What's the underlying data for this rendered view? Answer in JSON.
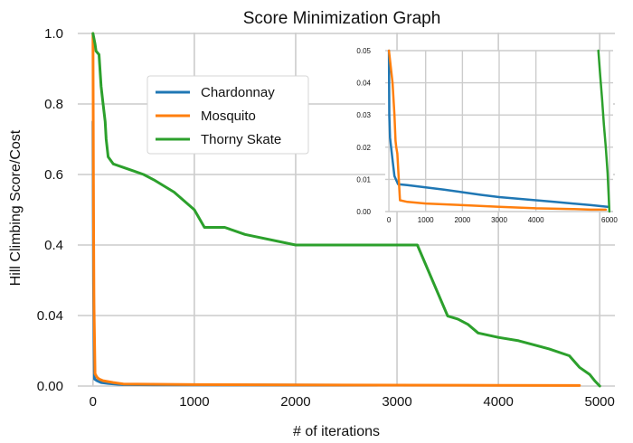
{
  "chart_data": {
    "type": "line",
    "title": "Score Minimization Graph",
    "xlabel": "# of iterations",
    "ylabel": "Hill Climbing Score/Cost",
    "x_ticks": [
      "0",
      "1000",
      "2000",
      "3000",
      "4000",
      "5000"
    ],
    "y_ticks": [
      "0.00",
      "0.04",
      "0.4",
      "0.6",
      "0.8",
      "1.0"
    ],
    "xlim": [
      -150,
      5150
    ],
    "grid": true,
    "legend": {
      "position": "upper-center",
      "entries": [
        "Chardonnay",
        "Mosquito",
        "Thorny Skate"
      ]
    },
    "colors": {
      "Chardonnay": "#1f77b4",
      "Mosquito": "#ff7f0e",
      "Thorny Skate": "#2ca02c"
    },
    "series": [
      {
        "name": "Chardonnay",
        "x": [
          0,
          5,
          15,
          40,
          80,
          150,
          250,
          300,
          600,
          1500,
          2800
        ],
        "y": [
          0.75,
          0.2,
          0.004,
          0.003,
          0.002,
          0.0015,
          0.001,
          0.0008,
          0.0007,
          0.0006,
          0.0005
        ]
      },
      {
        "name": "Mosquito",
        "x": [
          0,
          5,
          10,
          20,
          40,
          60,
          100,
          200,
          300,
          1000,
          2000,
          3000,
          4000,
          4800
        ],
        "y": [
          1.0,
          0.5,
          0.1,
          0.007,
          0.005,
          0.004,
          0.003,
          0.002,
          0.0012,
          0.0008,
          0.0006,
          0.0005,
          0.0004,
          0.0003
        ]
      },
      {
        "name": "Thorny Skate",
        "x": [
          0,
          20,
          30,
          60,
          80,
          100,
          120,
          130,
          150,
          200,
          300,
          400,
          500,
          600,
          800,
          1000,
          1100,
          1300,
          1500,
          2000,
          2500,
          2700,
          3000,
          3200,
          3500,
          3600,
          3700,
          3800,
          4000,
          4200,
          4500,
          4700,
          4800,
          4900,
          4950,
          5000
        ],
        "y": [
          1.0,
          0.97,
          0.95,
          0.94,
          0.85,
          0.8,
          0.75,
          0.7,
          0.65,
          0.63,
          0.62,
          0.61,
          0.6,
          0.585,
          0.55,
          0.5,
          0.45,
          0.45,
          0.43,
          0.4,
          0.4,
          0.4,
          0.4,
          0.4,
          0.0397,
          0.038,
          0.035,
          0.0301,
          0.0276,
          0.0257,
          0.0211,
          0.0172,
          0.0106,
          0.0066,
          0.003,
          0.0
        ]
      }
    ],
    "inset": {
      "type": "line",
      "x_ticks": [
        "0",
        "1000",
        "2000",
        "3000",
        "4000",
        "6000"
      ],
      "y_ticks": [
        "0.00",
        "0.01",
        "0.02",
        "0.03",
        "0.04",
        "0.05"
      ],
      "xlim": [
        -100,
        6100
      ],
      "ylim": [
        0,
        0.05
      ],
      "series": [
        {
          "name": "Chardonnay",
          "x": [
            0,
            10,
            30,
            60,
            100,
            150,
            250,
            500,
            1000,
            1500,
            2000,
            2500,
            3000,
            3500,
            4000,
            4500,
            5000,
            5500,
            5950
          ],
          "y": [
            0.05,
            0.03,
            0.023,
            0.02,
            0.016,
            0.011,
            0.0085,
            0.0082,
            0.0075,
            0.0068,
            0.006,
            0.0052,
            0.0045,
            0.004,
            0.0035,
            0.003,
            0.0025,
            0.002,
            0.0015
          ]
        },
        {
          "name": "Mosquito",
          "x": [
            0,
            50,
            100,
            150,
            180,
            200,
            230,
            260,
            300,
            500,
            1000,
            2000,
            3000,
            4000,
            5000,
            5500,
            5900
          ],
          "y": [
            0.05,
            0.045,
            0.04,
            0.03,
            0.022,
            0.02,
            0.018,
            0.012,
            0.0035,
            0.003,
            0.0025,
            0.002,
            0.0015,
            0.001,
            0.0008,
            0.0006,
            0.0006
          ]
        },
        {
          "name": "Thorny Skate",
          "x": [
            5700,
            5750,
            5800,
            5850,
            5900,
            5950,
            6000
          ],
          "y": [
            0.05,
            0.042,
            0.035,
            0.027,
            0.02,
            0.012,
            0.0
          ]
        }
      ]
    }
  }
}
